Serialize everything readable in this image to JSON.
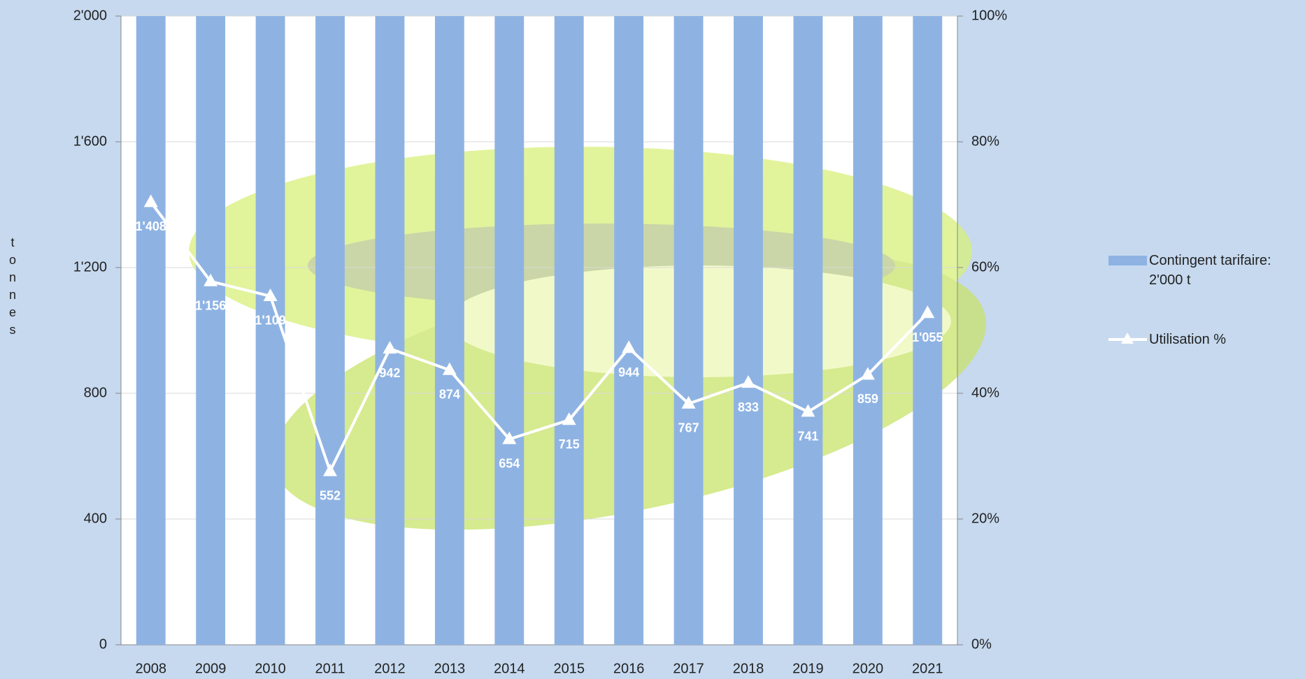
{
  "chart_data": {
    "type": "bar-line",
    "ylabel": "tonnes",
    "categories": [
      "2008",
      "2009",
      "2010",
      "2011",
      "2012",
      "2013",
      "2014",
      "2015",
      "2016",
      "2017",
      "2018",
      "2019",
      "2020",
      "2021"
    ],
    "series": [
      {
        "name": "Contingent tarifaire: 2'000 t",
        "type": "bar",
        "color": "#8eb3e3",
        "values": [
          2000,
          2000,
          2000,
          2000,
          2000,
          2000,
          2000,
          2000,
          2000,
          2000,
          2000,
          2000,
          2000,
          2000
        ]
      },
      {
        "name": "Utilisation %",
        "type": "line",
        "color": "#ffffff",
        "values": [
          1408,
          1156,
          1109,
          552,
          942,
          874,
          654,
          715,
          944,
          767,
          833,
          741,
          859,
          1055
        ],
        "value_labels": [
          "1'408",
          "1'156",
          "1'109",
          "552",
          "942",
          "874",
          "654",
          "715",
          "944",
          "767",
          "833",
          "741",
          "859",
          "1'055"
        ]
      }
    ],
    "ylim": [
      0,
      2000
    ],
    "yticks": [
      0,
      400,
      800,
      {
        "value": 1200,
        "label": "1'200"
      },
      {
        "value": 1600,
        "label": "1'600"
      },
      {
        "value": 2000,
        "label": "2'000"
      }
    ],
    "y2lim": [
      0,
      100
    ],
    "y2ticks": [
      {
        "value": 0,
        "label": "0%"
      },
      {
        "value": 20,
        "label": "20%"
      },
      {
        "value": 40,
        "label": "40%"
      },
      {
        "value": 60,
        "label": "60%"
      },
      {
        "value": 80,
        "label": "80%"
      },
      {
        "value": 100,
        "label": "100%"
      }
    ],
    "grid": true
  }
}
